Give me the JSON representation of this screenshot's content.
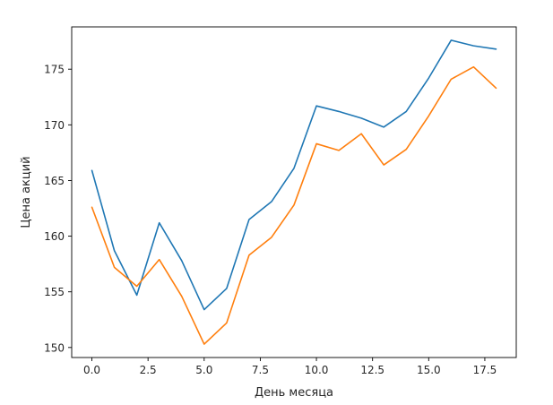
{
  "chart_data": {
    "type": "line",
    "title": "",
    "xlabel": "День месяца",
    "ylabel": "Цена акций",
    "xlim": [
      -0.9,
      18.9
    ],
    "ylim": [
      149.1,
      178.8
    ],
    "xticks": [
      0.0,
      2.5,
      5.0,
      7.5,
      10.0,
      12.5,
      15.0,
      17.5
    ],
    "xtick_labels": [
      "0.0",
      "2.5",
      "5.0",
      "7.5",
      "10.0",
      "12.5",
      "15.0",
      "17.5"
    ],
    "yticks": [
      150,
      155,
      160,
      165,
      170,
      175
    ],
    "ytick_labels": [
      "150",
      "155",
      "160",
      "165",
      "170",
      "175"
    ],
    "grid": false,
    "x": [
      0,
      1,
      2,
      3,
      4,
      5,
      6,
      7,
      8,
      9,
      10,
      11,
      12,
      13,
      14,
      15,
      16,
      17,
      18
    ],
    "series": [
      {
        "color": "#1f77b4",
        "values": [
          165.9,
          158.7,
          154.7,
          161.2,
          157.8,
          153.4,
          155.3,
          161.5,
          163.1,
          166.1,
          171.7,
          171.2,
          170.6,
          169.8,
          171.2,
          174.2,
          177.6,
          177.1,
          176.8
        ]
      },
      {
        "color": "#ff7f0e",
        "values": [
          162.6,
          157.2,
          155.5,
          157.9,
          154.6,
          150.3,
          152.2,
          158.3,
          159.9,
          162.8,
          168.3,
          167.7,
          169.2,
          166.4,
          167.8,
          170.8,
          174.1,
          175.2,
          173.3
        ]
      }
    ]
  }
}
